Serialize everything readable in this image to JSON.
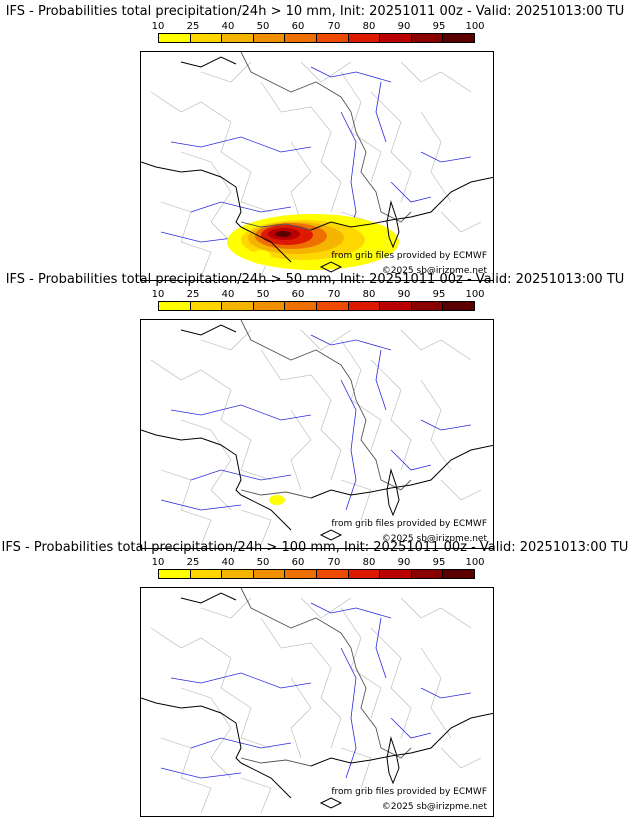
{
  "colorbar": {
    "ticks": [
      "10",
      "25",
      "40",
      "50",
      "60",
      "70",
      "80",
      "90",
      "95",
      "100"
    ],
    "colors": [
      "#ffff00",
      "#ffd700",
      "#f5b400",
      "#f09000",
      "#ee7000",
      "#ee4a00",
      "#dd1a00",
      "#b80000",
      "#8a0000",
      "#5a0000"
    ]
  },
  "panels": [
    {
      "title": "IFS - Probabilities total precipitation/24h > 10 mm, Init: 20251011 00z - Valid: 20251013:00 TU",
      "credit": "from grib files provided by ECMWF",
      "copyright": "©2025 sb@irizpme.net",
      "signal_level": "high"
    },
    {
      "title": "IFS - Probabilities total precipitation/24h > 50 mm, Init: 20251011 00z - Valid: 20251013:00 TU",
      "credit": "from grib files provided by ECMWF",
      "copyright": "©2025 sb@irizpme.net",
      "signal_level": "low"
    },
    {
      "title": "IFS - Probabilities total precipitation/24h > 100 mm, Init: 20251011 00z - Valid: 20251013:00 TU",
      "credit": "from grib files provided by ECMWF",
      "copyright": "©2025 sb@irizpme.net",
      "signal_level": "none"
    }
  ]
}
